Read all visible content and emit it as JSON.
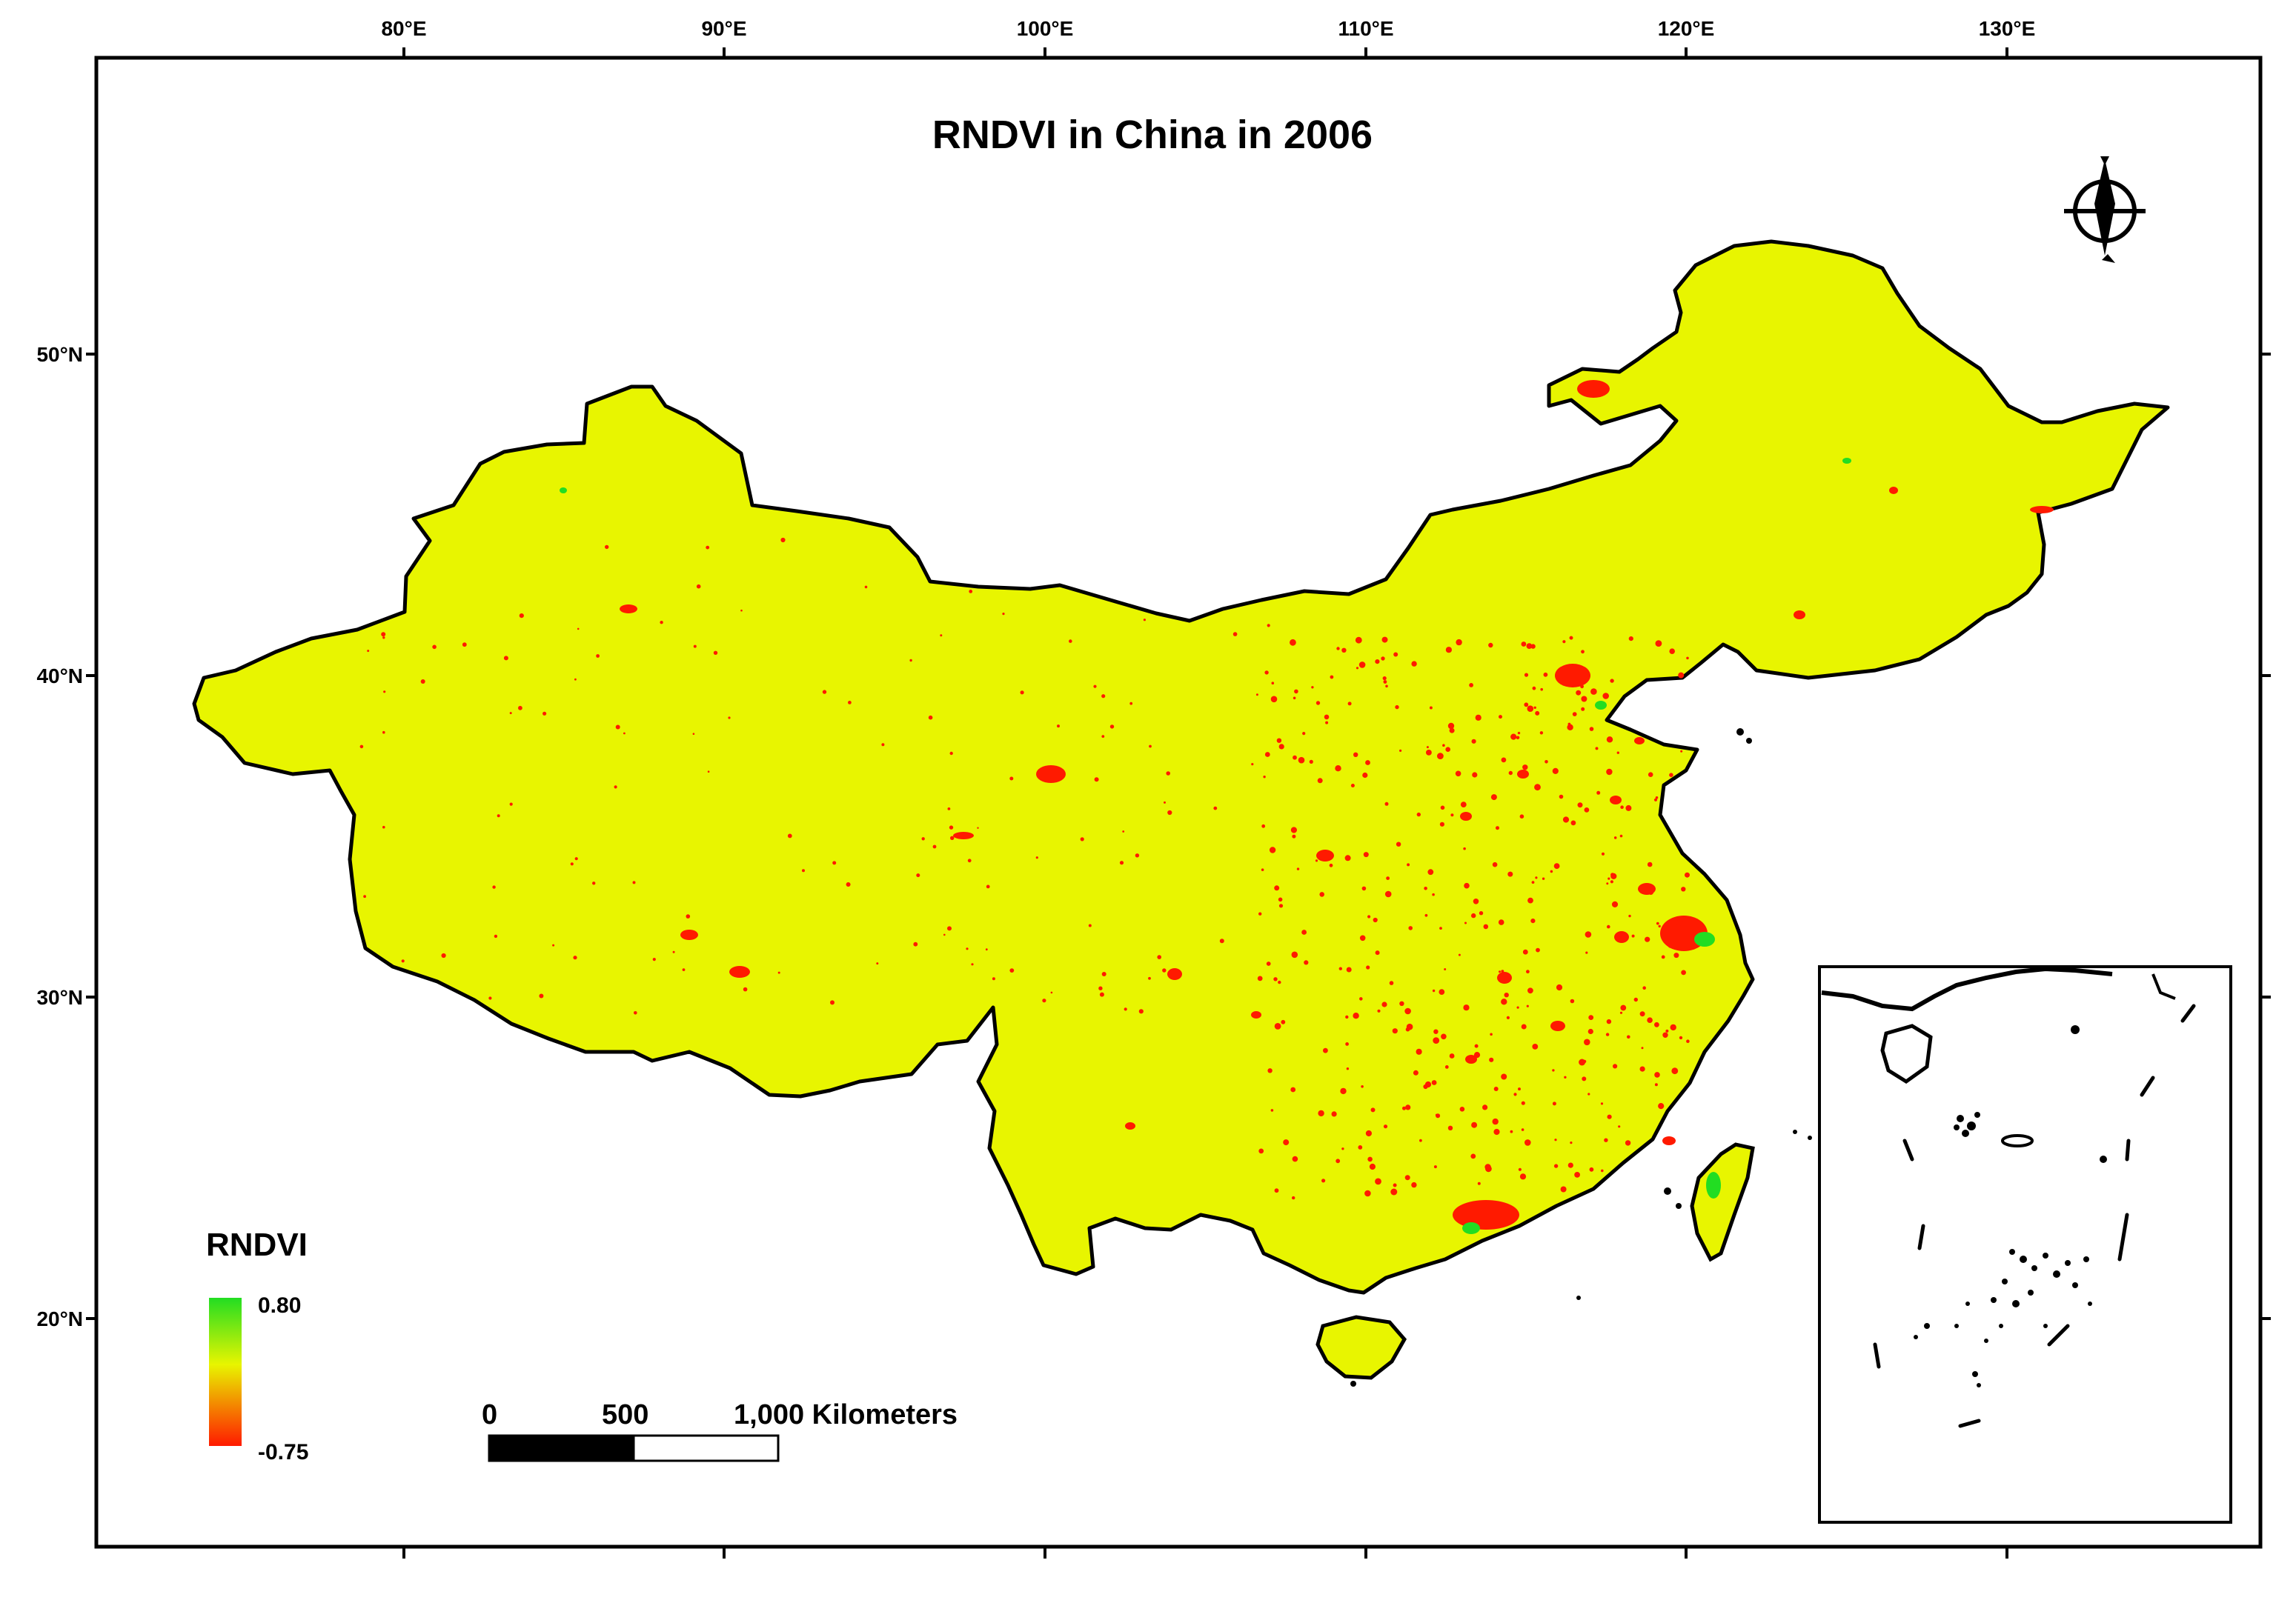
{
  "map": {
    "title": "RNDVI in China in 2006",
    "colors": {
      "land": "#e8f500",
      "urban_low": "#ff1a00",
      "vegetation_high": "#22dd22",
      "outline": "#000000",
      "frame": "#000000"
    },
    "axes": {
      "longitude_labels": [
        "80°E",
        "90°E",
        "100°E",
        "110°E",
        "120°E",
        "130°E"
      ],
      "latitude_labels": [
        "50°N",
        "40°N",
        "30°N",
        "20°N"
      ]
    },
    "legend": {
      "title": "RNDVI",
      "max_label": "0.80",
      "min_label": "-0.75",
      "gradient": [
        "#22dd22",
        "#e8f500",
        "#ff1a00"
      ]
    },
    "scale_bar": {
      "labels": [
        "0",
        "500",
        "1,000 Kilometers"
      ]
    },
    "north_arrow": {
      "icon": "north-arrow-icon"
    },
    "inset": {
      "description_icon": "south-china-sea-inset"
    }
  }
}
